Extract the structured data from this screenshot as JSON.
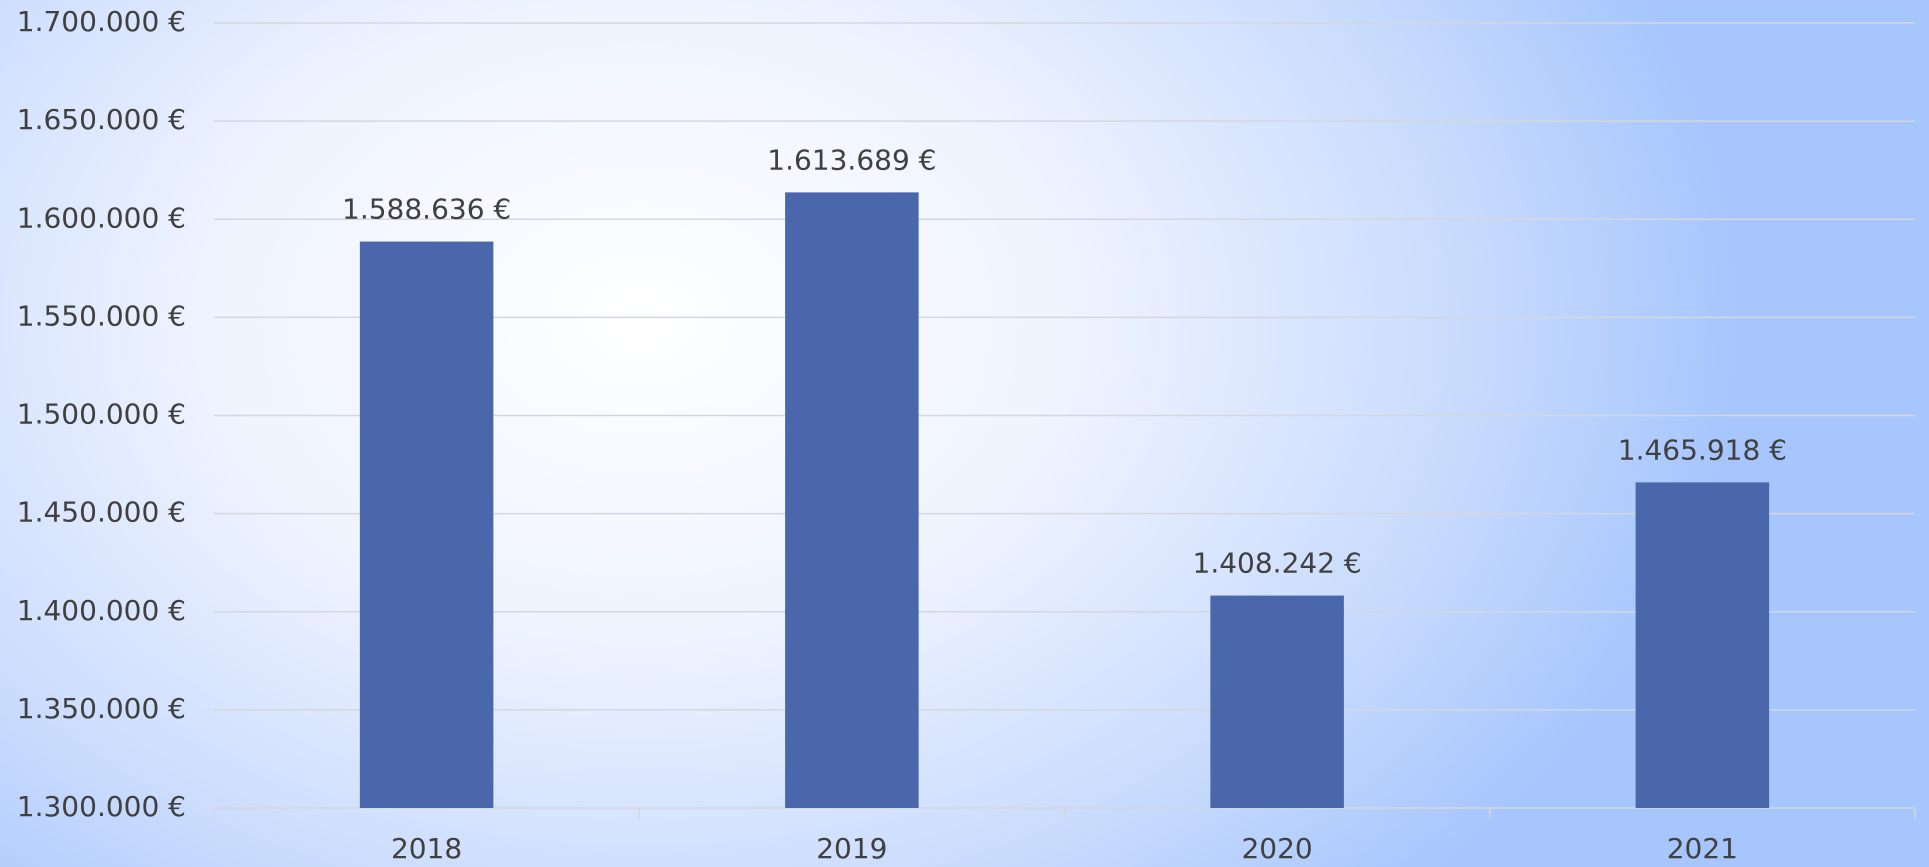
{
  "chart_data": {
    "type": "bar",
    "categories": [
      "2018",
      "2019",
      "2020",
      "2021"
    ],
    "values": [
      1588636,
      1613689,
      1408242,
      1465918
    ],
    "value_labels": [
      "1.588.636 €",
      "1.613.689 €",
      "1.408.242 €",
      "1.465.918 €"
    ],
    "color": "#4a67ab",
    "ylim": [
      1300000,
      1700000
    ],
    "yticks": [
      {
        "value": 1300000,
        "label": "1.300.000 €"
      },
      {
        "value": 1350000,
        "label": "1.350.000 €"
      },
      {
        "value": 1400000,
        "label": "1.400.000 €"
      },
      {
        "value": 1450000,
        "label": "1.450.000 €"
      },
      {
        "value": 1500000,
        "label": "1.500.000 €"
      },
      {
        "value": 1550000,
        "label": "1.550.000 €"
      },
      {
        "value": 1600000,
        "label": "1.600.000 €"
      },
      {
        "value": 1650000,
        "label": "1.650.000 €"
      },
      {
        "value": 1700000,
        "label": "1.700.000 €"
      }
    ],
    "grid": true
  }
}
